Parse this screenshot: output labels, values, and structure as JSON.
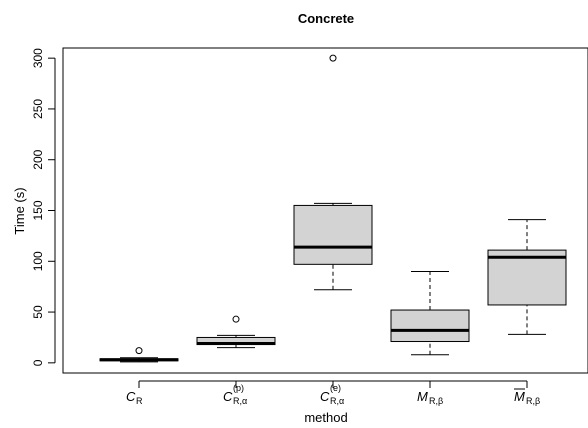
{
  "chart_data": {
    "type": "box",
    "title": "Concrete",
    "xlabel": "method",
    "ylabel": "Time (s)",
    "ylim": [
      -10,
      310
    ],
    "yticks": [
      0,
      50,
      100,
      150,
      200,
      250,
      300
    ],
    "grid": false,
    "box_fill": "#d3d3d3",
    "categories": [
      {
        "main": "C",
        "sub": "R",
        "sup": "",
        "bar": false
      },
      {
        "main": "C",
        "sub": "R,α",
        "sup": "(p)",
        "bar": false
      },
      {
        "main": "C",
        "sub": "R,α",
        "sup": "(e)",
        "bar": false
      },
      {
        "main": "M",
        "sub": "R,β",
        "sup": "",
        "bar": false
      },
      {
        "main": "M",
        "sub": "R,β",
        "sup": "",
        "bar": true
      }
    ],
    "boxes": [
      {
        "whisker_low": 1,
        "q1": 2,
        "median": 3,
        "q3": 4,
        "whisker_high": 5,
        "outliers": [
          12
        ]
      },
      {
        "whisker_low": 15,
        "q1": 18,
        "median": 19,
        "q3": 25,
        "whisker_high": 27,
        "outliers": [
          43
        ]
      },
      {
        "whisker_low": 72,
        "q1": 97,
        "median": 114,
        "q3": 155,
        "whisker_high": 157,
        "outliers": [
          300
        ]
      },
      {
        "whisker_low": 8,
        "q1": 21,
        "median": 32,
        "q3": 52,
        "whisker_high": 90,
        "outliers": []
      },
      {
        "whisker_low": 28,
        "q1": 57,
        "median": 104,
        "q3": 111,
        "whisker_high": 141,
        "outliers": []
      }
    ]
  }
}
